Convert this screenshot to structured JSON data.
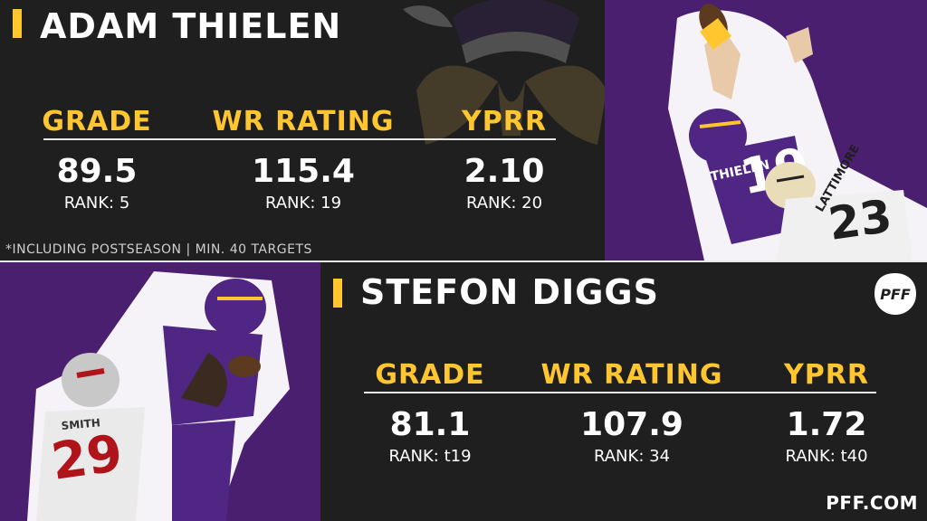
{
  "top": {
    "player_name": "ADAM THIELEN",
    "stats": [
      {
        "label": "GRADE",
        "value": "89.5",
        "rank": "RANK: 5"
      },
      {
        "label": "WR RATING",
        "value": "115.4",
        "rank": "RANK: 19"
      },
      {
        "label": "YPRR",
        "value": "2.10",
        "rank": "RANK: 20"
      }
    ],
    "footnote": "*INCLUDING POSTSEASON | MIN. 40 TARGETS",
    "jersey_name": "THIELEN",
    "jersey_number": "19",
    "defender_name": "LATTIMORE",
    "defender_number": "23"
  },
  "bottom": {
    "player_name": "STEFON DIGGS",
    "stats": [
      {
        "label": "GRADE",
        "value": "81.1",
        "rank": "RANK: t19"
      },
      {
        "label": "WR RATING",
        "value": "107.9",
        "rank": "RANK: 34"
      },
      {
        "label": "YPRR",
        "value": "1.72",
        "rank": "RANK: t40"
      }
    ],
    "defender_name": "SMITH",
    "defender_number": "29"
  },
  "brand": {
    "logo_text": "PFF",
    "site": "PFF.COM"
  },
  "colors": {
    "gold": "#ffc62f",
    "purple": "#4f2683",
    "background": "#1f1f20"
  },
  "icons": {
    "team_logo": "vikings-logo-icon",
    "brand_logo": "pff-shield-icon"
  }
}
